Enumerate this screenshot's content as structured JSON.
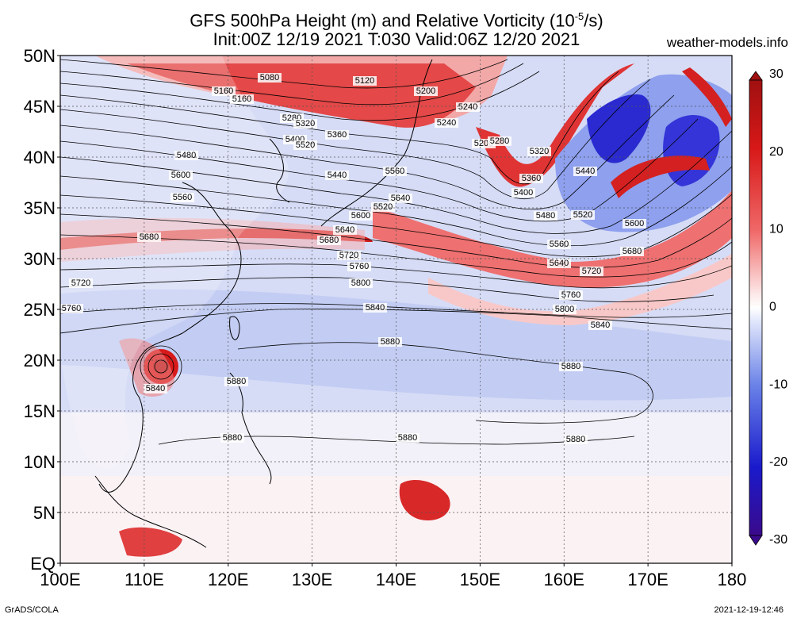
{
  "header": {
    "title_line1": "GFS 500hPa Height (m) and Relative Vorticity (10",
    "title_exp": "-5",
    "title_line1_end": "/s)",
    "title_line2": "Init:00Z 12/19 2021 T:030 Valid:06Z 12/20 2021",
    "site": "weather-models.info"
  },
  "footer": {
    "left": "GrADS/COLA",
    "right": "2021-12-19-12:46"
  },
  "map": {
    "lat_labels": [
      "50N",
      "45N",
      "40N",
      "35N",
      "30N",
      "25N",
      "20N",
      "15N",
      "10N",
      "5N",
      "EQ"
    ],
    "lon_labels": [
      "100E",
      "110E",
      "120E",
      "130E",
      "140E",
      "150E",
      "160E",
      "170E",
      "180"
    ],
    "lat_range": [
      0,
      50
    ],
    "lon_range": [
      100,
      180
    ],
    "gridlines": "dotted"
  },
  "colorbar": {
    "labels": [
      "30",
      "20",
      "10",
      "0",
      "-10",
      "-20",
      "-30"
    ],
    "range": [
      -30,
      30
    ],
    "colors": [
      "#3a0a8c",
      "#1a1acc",
      "#6a82e8",
      "#c8d2f8",
      "#ffffff",
      "#f8c8c8",
      "#f03030",
      "#c81414",
      "#a01010"
    ]
  },
  "contour_labels": [
    "5080",
    "5120",
    "5160",
    "5200",
    "5160",
    "5240",
    "5280",
    "5320",
    "5360",
    "5400",
    "5520",
    "5480",
    "5440",
    "5560",
    "5600",
    "5640",
    "5520",
    "5560",
    "5600",
    "5680",
    "5640",
    "5680",
    "5720",
    "5760",
    "5800",
    "5720",
    "5760",
    "5840",
    "5880",
    "5880",
    "5840",
    "5880",
    "5880",
    "5880",
    "5880",
    "5240",
    "5200",
    "5280",
    "5320",
    "5360",
    "5400",
    "5440",
    "5480",
    "5520",
    "5600",
    "5560",
    "5640",
    "5680",
    "5720",
    "5760",
    "5800",
    "5840"
  ]
}
